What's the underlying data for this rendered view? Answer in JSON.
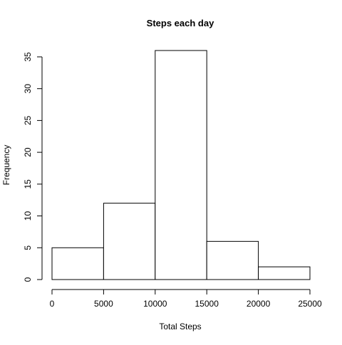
{
  "chart_data": {
    "type": "bar",
    "title": "Steps each day",
    "xlabel": "Total Steps",
    "ylabel": "Frequency",
    "bins": [
      {
        "start": 0,
        "end": 5000,
        "value": 5
      },
      {
        "start": 5000,
        "end": 10000,
        "value": 12
      },
      {
        "start": 10000,
        "end": 15000,
        "value": 36
      },
      {
        "start": 15000,
        "end": 20000,
        "value": 6
      },
      {
        "start": 20000,
        "end": 25000,
        "value": 2
      }
    ],
    "x_ticks": [
      0,
      5000,
      10000,
      15000,
      20000,
      25000
    ],
    "y_ticks": [
      0,
      5,
      10,
      15,
      20,
      25,
      30,
      35
    ],
    "xlim": [
      0,
      25000
    ],
    "ylim": [
      0,
      36
    ],
    "grid": false,
    "colors": {
      "bar_fill": "#ffffff",
      "bar_stroke": "#000000",
      "axis": "#000000"
    }
  }
}
